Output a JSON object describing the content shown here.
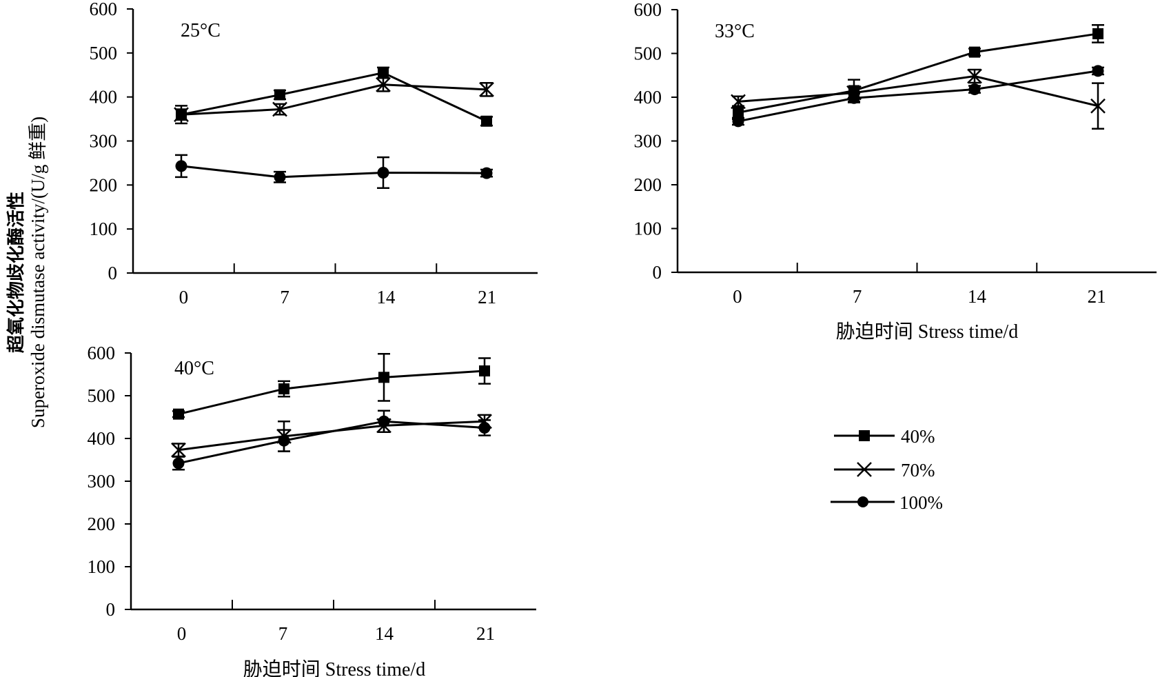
{
  "figure": {
    "ylabel_cn": "超氧化物歧化酶活性",
    "ylabel_en": "Superoxide dismutase activity/(U/g 鲜重)",
    "xlabel": "胁迫时间 Stress time/d"
  },
  "legend": [
    {
      "label": "40%",
      "marker": "square"
    },
    {
      "label": "70%",
      "marker": "cross"
    },
    {
      "label": "100%",
      "marker": "circle"
    }
  ],
  "colors": {
    "line": "#000000",
    "background": "#ffffff"
  },
  "chart_data": [
    {
      "type": "line",
      "title": "25°C",
      "categories": [
        "0",
        "7",
        "14",
        "21"
      ],
      "ylim": [
        0,
        600
      ],
      "yticks": [
        "0",
        "100",
        "200",
        "300",
        "400",
        "500",
        "600"
      ],
      "series": [
        {
          "name": "40%",
          "values": [
            360,
            405,
            455,
            345
          ],
          "errors": [
            20,
            10,
            12,
            10
          ]
        },
        {
          "name": "70%",
          "values": [
            360,
            372,
            428,
            417
          ],
          "errors": [
            12,
            12,
            15,
            15
          ]
        },
        {
          "name": "100%",
          "values": [
            243,
            218,
            228,
            227
          ],
          "errors": [
            25,
            12,
            35,
            8
          ]
        }
      ]
    },
    {
      "type": "line",
      "title": "33°C",
      "categories": [
        "0",
        "7",
        "14",
        "21"
      ],
      "ylim": [
        0,
        600
      ],
      "yticks": [
        "0",
        "100",
        "200",
        "300",
        "400",
        "500",
        "600"
      ],
      "series": [
        {
          "name": "40%",
          "values": [
            365,
            415,
            503,
            545
          ],
          "errors": [
            15,
            25,
            8,
            20
          ]
        },
        {
          "name": "70%",
          "values": [
            390,
            410,
            448,
            380
          ],
          "errors": [
            12,
            12,
            15,
            52
          ]
        },
        {
          "name": "100%",
          "values": [
            345,
            398,
            418,
            460
          ],
          "errors": [
            8,
            10,
            8,
            8
          ]
        }
      ]
    },
    {
      "type": "line",
      "title": "40°C",
      "categories": [
        "0",
        "7",
        "14",
        "21"
      ],
      "ylim": [
        0,
        600
      ],
      "yticks": [
        "0",
        "100",
        "200",
        "300",
        "400",
        "500",
        "600"
      ],
      "series": [
        {
          "name": "40%",
          "values": [
            457,
            516,
            543,
            558
          ],
          "errors": [
            7,
            18,
            55,
            30
          ]
        },
        {
          "name": "70%",
          "values": [
            373,
            405,
            430,
            440
          ],
          "errors": [
            15,
            35,
            15,
            15
          ]
        },
        {
          "name": "100%",
          "values": [
            342,
            395,
            440,
            425
          ],
          "errors": [
            15,
            25,
            25,
            18
          ]
        }
      ]
    }
  ]
}
